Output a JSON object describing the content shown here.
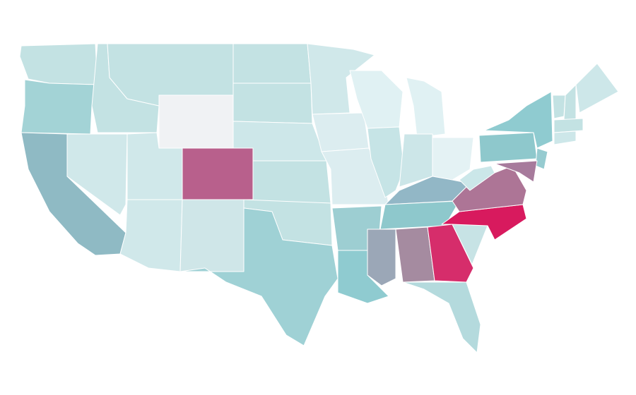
{
  "map": {
    "regions": [
      {
        "color": "#c3e2e3"
      },
      {
        "color": "#a3d3d6"
      },
      {
        "color": "#8fbac4"
      },
      {
        "color": "#d0e8ea"
      },
      {
        "color": "#c3e2e3"
      },
      {
        "color": "#c3e2e3"
      },
      {
        "color": "#f0f2f4"
      },
      {
        "color": "#d0e8ea"
      },
      {
        "color": "#d0e8ea"
      },
      {
        "color": "#b8608c"
      },
      {
        "color": "#cfe6e8"
      },
      {
        "color": "#c3e2e3"
      },
      {
        "color": "#c3e2e3"
      },
      {
        "color": "#cde7e9"
      },
      {
        "color": "#c3e2e3"
      },
      {
        "color": "#c3e2e3"
      },
      {
        "color": "#9fd1d5"
      },
      {
        "color": "#d0e8ea"
      },
      {
        "color": "#dcedf0"
      },
      {
        "color": "#dcedf0"
      },
      {
        "color": "#9dced2"
      },
      {
        "color": "#8fcbd0"
      },
      {
        "color": "#e0f1f3"
      },
      {
        "color": "#c6e4e6"
      },
      {
        "color": "#e0f1f3"
      },
      {
        "color": "#cce6e8"
      },
      {
        "color": "#e4f2f4"
      },
      {
        "color": "#92b7c6"
      },
      {
        "color": "#8ec8cc"
      },
      {
        "color": "#9ba7b7"
      },
      {
        "color": "#a58ba0"
      },
      {
        "color": "#d62d6b"
      },
      {
        "color": "#b4dadd"
      },
      {
        "color": "#c7e3e5"
      },
      {
        "color": "#d81a5e"
      },
      {
        "color": "#ad7596"
      },
      {
        "color": "#cbe7e9"
      },
      {
        "color": "#8ec8cc"
      },
      {
        "color": "#8fcbd0"
      },
      {
        "color": "#96cbd0"
      },
      {
        "color": "#a77b9c"
      },
      {
        "color": "#c3e2e3"
      },
      {
        "color": "#c3e2e3"
      },
      {
        "color": "#cde7e9"
      },
      {
        "color": "#c3e2e3"
      },
      {
        "color": "#cde7e9"
      }
    ]
  }
}
